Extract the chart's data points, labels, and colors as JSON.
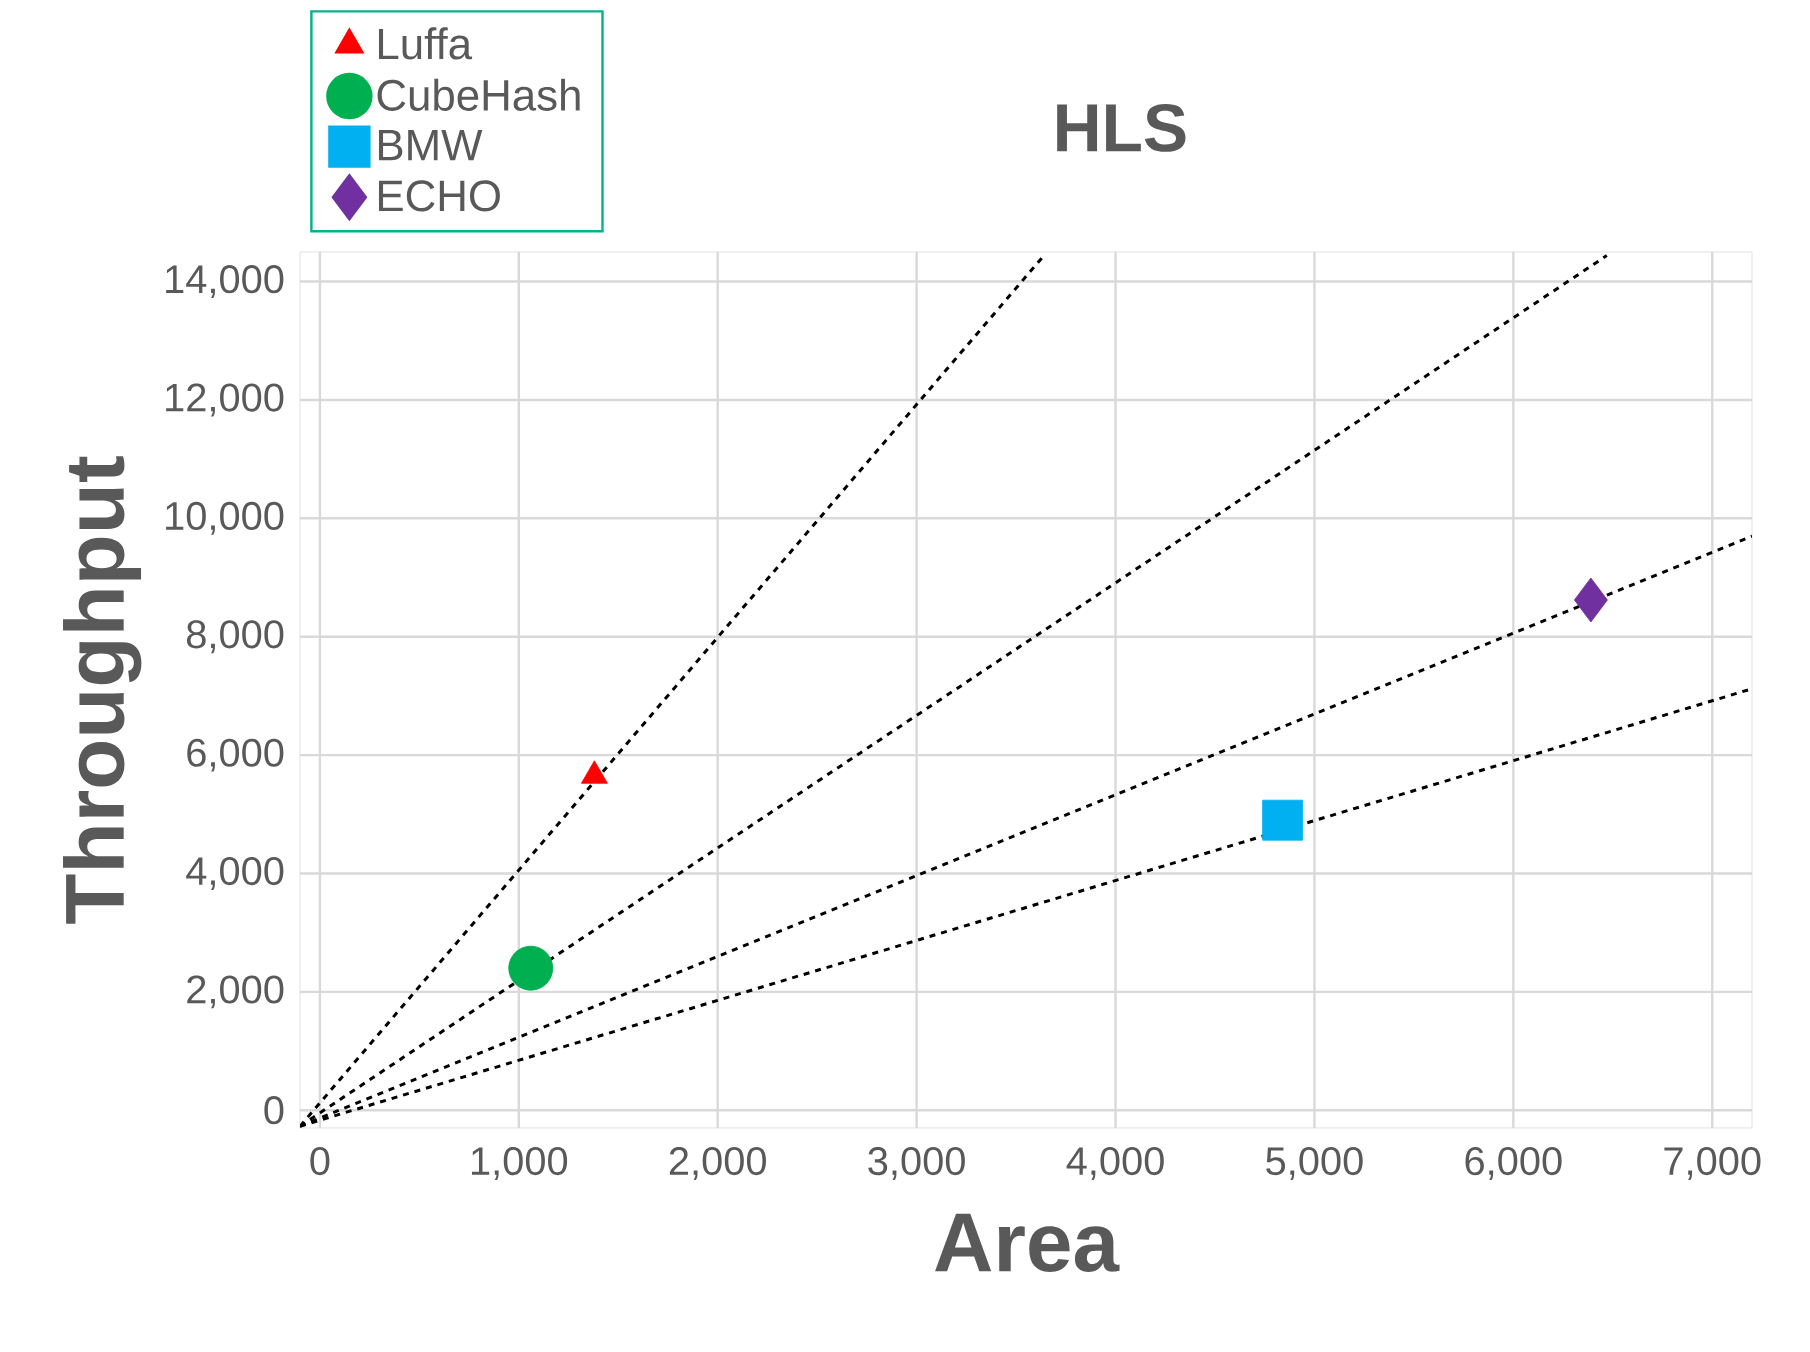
{
  "chart_data": {
    "type": "scatter",
    "title": "HLS",
    "xlabel": "Area",
    "ylabel": "Throughput",
    "xlim": [
      -100,
      7200
    ],
    "ylim": [
      -300,
      14500
    ],
    "xticks": [
      0,
      {
        "value": 1000,
        "label": "1,000"
      },
      {
        "value": 2000,
        "label": "2,000"
      },
      {
        "value": 3000,
        "label": "3,000"
      },
      {
        "value": 4000,
        "label": "4,000"
      },
      {
        "value": 5000,
        "label": "5,000"
      },
      {
        "value": 6000,
        "label": "6,000"
      },
      {
        "value": 7000,
        "label": "7,000"
      }
    ],
    "yticks": [
      0,
      {
        "value": 2000,
        "label": "2,000"
      },
      {
        "value": 4000,
        "label": "4,000"
      },
      {
        "value": 6000,
        "label": "6,000"
      },
      {
        "value": 8000,
        "label": "8,000"
      },
      {
        "value": 10000,
        "label": "10,000"
      },
      {
        "value": 12000,
        "label": "12,000"
      },
      {
        "value": 14000,
        "label": "14,000"
      }
    ],
    "grid": true,
    "legend": "top left",
    "series": [
      {
        "type": "line",
        "color": "#000000",
        "line_style": "dashed",
        "marker": "none",
        "x": [
          -100,
          3640
        ],
        "values": [
          -270,
          14440
        ]
      },
      {
        "type": "line",
        "color": "#000000",
        "line_style": "dashed",
        "marker": "none",
        "x": [
          -100,
          6470
        ],
        "values": [
          -270,
          14440
        ]
      },
      {
        "type": "line",
        "color": "#000000",
        "line_style": "dashed",
        "marker": "none",
        "x": [
          -100,
          7200
        ],
        "values": [
          -270,
          9700
        ]
      },
      {
        "type": "line",
        "color": "#000000",
        "line_style": "dashed",
        "marker": "none",
        "x": [
          -100,
          7180
        ],
        "values": [
          -270,
          7100
        ]
      },
      {
        "name": "Luffa",
        "color": "#ff0000",
        "marker": "triangle",
        "x": [
          1380
        ],
        "values": [
          5650
        ]
      },
      {
        "name": "CubeHash",
        "color": "#00b050",
        "marker": "circle",
        "x": [
          1060
        ],
        "values": [
          2400
        ]
      },
      {
        "name": "BMW",
        "color": "#00b0f0",
        "marker": "square",
        "x": [
          4840
        ],
        "values": [
          4900
        ]
      },
      {
        "name": "ECHO",
        "color": "#7030a0",
        "marker": "diamond",
        "x": [
          6390
        ],
        "values": [
          8620
        ]
      }
    ]
  }
}
